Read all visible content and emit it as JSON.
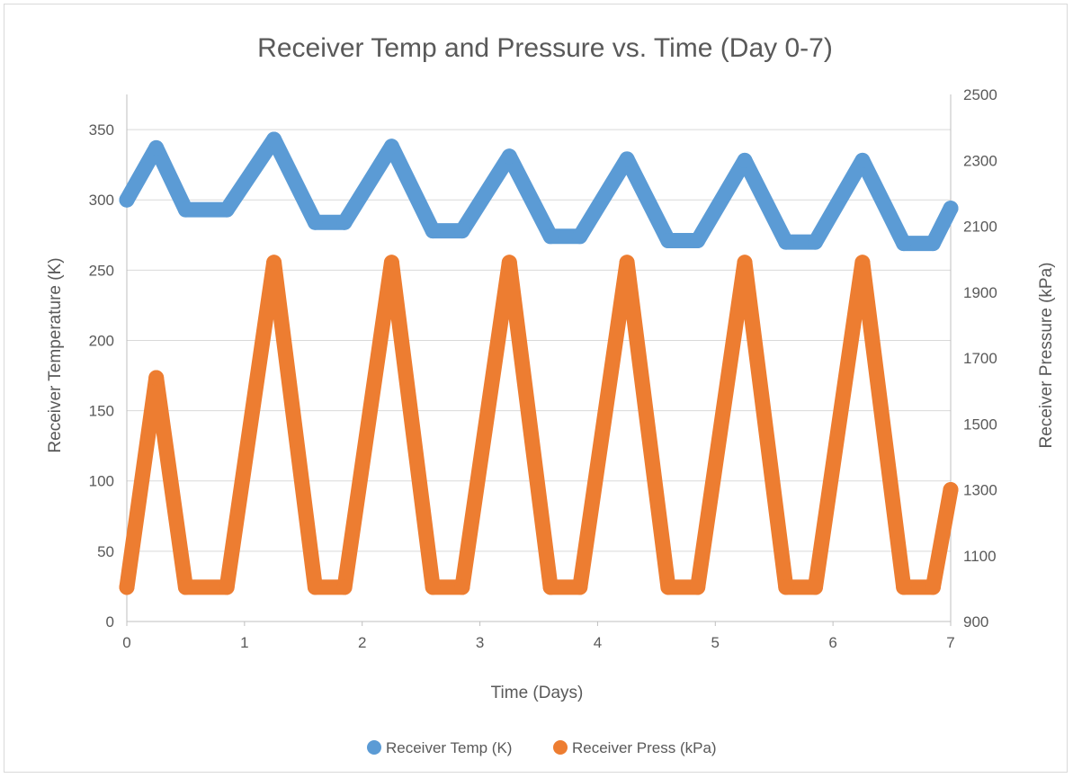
{
  "chart_data": {
    "type": "scatter",
    "title": "Receiver Temp and Pressure vs. Time (Day 0-7)",
    "xlabel": "Time (Days)",
    "ylabel": "Receiver Temperature (K)",
    "y2label": "Receiver Pressure (kPa)",
    "xlim": [
      0,
      7
    ],
    "ylim": [
      0,
      375
    ],
    "y2lim": [
      900,
      2500
    ],
    "x_ticks": [
      "0",
      "1",
      "2",
      "3",
      "4",
      "5",
      "6",
      "7"
    ],
    "y_ticks": [
      "0",
      "50",
      "100",
      "150",
      "200",
      "250",
      "300",
      "350"
    ],
    "y2_ticks": [
      "900",
      "1100",
      "1300",
      "1500",
      "1700",
      "1900",
      "2100",
      "2300",
      "2500"
    ],
    "grid": true,
    "legend_position": "bottom",
    "series": [
      {
        "name": "Receiver Temp (K)",
        "axis": "left",
        "color": "#5B9BD5",
        "points": [
          [
            0.0,
            300
          ],
          [
            0.25,
            337
          ],
          [
            0.5,
            293
          ],
          [
            0.85,
            293
          ],
          [
            1.25,
            343
          ],
          [
            1.6,
            284
          ],
          [
            1.85,
            284
          ],
          [
            2.25,
            338
          ],
          [
            2.6,
            278
          ],
          [
            2.85,
            278
          ],
          [
            3.25,
            331
          ],
          [
            3.6,
            274
          ],
          [
            3.85,
            274
          ],
          [
            4.25,
            329
          ],
          [
            4.6,
            271
          ],
          [
            4.85,
            271
          ],
          [
            5.25,
            328
          ],
          [
            5.6,
            270
          ],
          [
            5.85,
            270
          ],
          [
            6.25,
            328
          ],
          [
            6.6,
            269
          ],
          [
            6.85,
            269
          ],
          [
            7.0,
            294
          ]
        ]
      },
      {
        "name": "Receiver Press (kPa)",
        "axis": "right",
        "color": "#ED7D31",
        "points": [
          [
            0.0,
            1004
          ],
          [
            0.25,
            1640
          ],
          [
            0.5,
            1004
          ],
          [
            0.85,
            1004
          ],
          [
            1.25,
            1990
          ],
          [
            1.6,
            1004
          ],
          [
            1.85,
            1004
          ],
          [
            2.25,
            1990
          ],
          [
            2.6,
            1004
          ],
          [
            2.85,
            1004
          ],
          [
            3.25,
            1990
          ],
          [
            3.6,
            1004
          ],
          [
            3.85,
            1004
          ],
          [
            4.25,
            1990
          ],
          [
            4.6,
            1004
          ],
          [
            4.85,
            1004
          ],
          [
            5.25,
            1990
          ],
          [
            5.6,
            1004
          ],
          [
            5.85,
            1004
          ],
          [
            6.25,
            1990
          ],
          [
            6.6,
            1004
          ],
          [
            6.85,
            1004
          ],
          [
            7.0,
            1300
          ]
        ]
      }
    ]
  }
}
